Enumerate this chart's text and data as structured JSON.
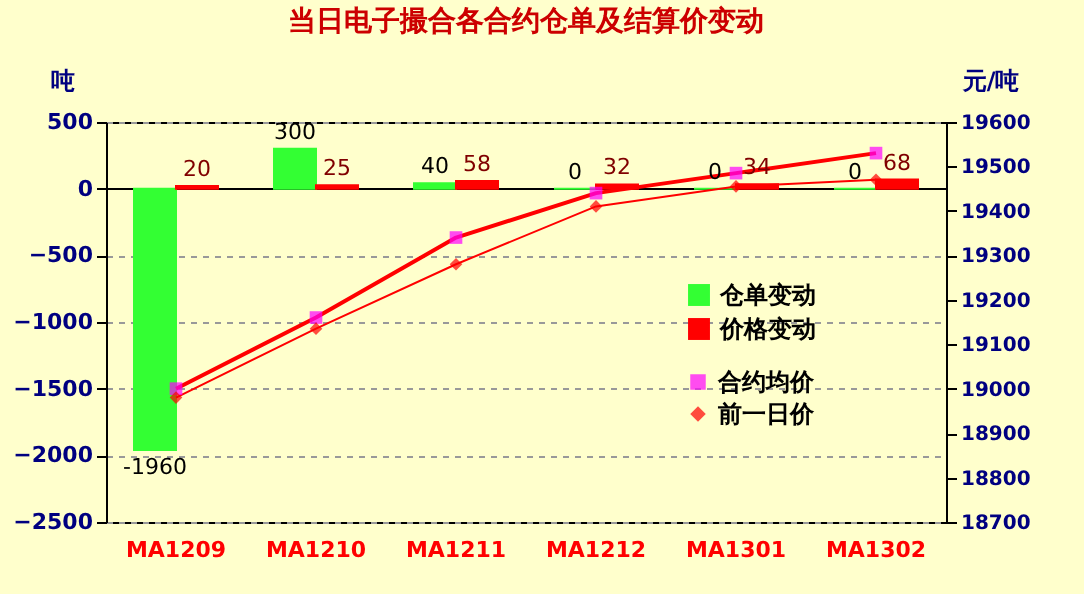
{
  "chart_data": {
    "type": "bar",
    "title": "当日电子撮合各合约仓单及结算价变动",
    "ylabel": "吨",
    "y2label": "元/吨",
    "categories": [
      "MA1209",
      "MA1210",
      "MA1211",
      "MA1212",
      "MA1301",
      "MA1302"
    ],
    "series": [
      {
        "name": "仓单变动",
        "color": "#33ff33",
        "values": [
          -1960,
          300,
          40,
          0,
          0,
          0
        ],
        "value_labels": [
          "-1960",
          "300",
          "40",
          "0",
          "0",
          "0"
        ]
      },
      {
        "name": "价格变动",
        "color": "#ff0000",
        "values": [
          20,
          25,
          58,
          32,
          34,
          68
        ],
        "value_labels": [
          "20",
          "25",
          "58",
          "32",
          "34",
          "68"
        ]
      },
      {
        "name": "合约均价",
        "type": "line",
        "axis": "y2",
        "marker": "square",
        "color": "#ff00ff",
        "values": [
          19000,
          19160,
          19340,
          19440,
          19485,
          19530
        ]
      },
      {
        "name": "前一日价",
        "type": "line",
        "axis": "y2",
        "marker": "diamond",
        "color": "#ff0000",
        "values": [
          18980,
          19135,
          19280,
          19410,
          19455,
          19470
        ]
      }
    ],
    "ylim": [
      -2500,
      500
    ],
    "yticks": [
      -2500,
      -2000,
      -1500,
      -1000,
      -500,
      0,
      500
    ],
    "y2lim": [
      18700,
      19600
    ],
    "y2ticks": [
      18700,
      18800,
      18900,
      19000,
      19100,
      19200,
      19300,
      19400,
      19500,
      19600
    ],
    "grid": "y",
    "legend": "right"
  }
}
